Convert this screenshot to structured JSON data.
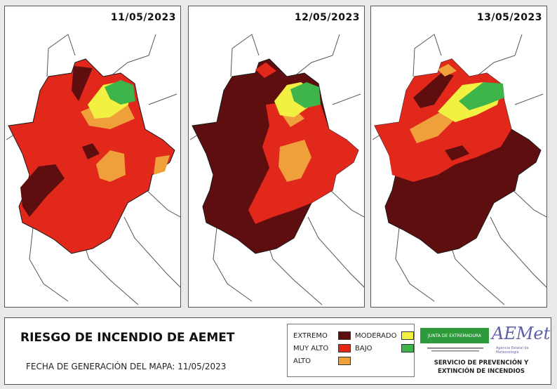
{
  "maps": [
    {
      "date": "11/05/2023"
    },
    {
      "date": "12/05/2023"
    },
    {
      "date": "13/05/2023"
    }
  ],
  "colors": {
    "extremo": "#5e0e0e",
    "muy_alto": "#e2271b",
    "alto": "#f0a03a",
    "moderado": "#f2f040",
    "bajo": "#3db54a",
    "border": "#1a1a1a"
  },
  "footer": {
    "title": "RIESGO DE INCENDIO DE AEMET",
    "generation_date": "FECHA DE GENERACIÓN DEL MAPA: 11/05/2023",
    "legend": {
      "extremo": "EXTREMO",
      "muy_alto": "MUY ALTO",
      "alto": "ALTO",
      "moderado": "MODERADO",
      "bajo": "BAJO"
    },
    "junta_logo": "JUNTA DE EXTREMADURA",
    "aemet_logo": "AEMet",
    "aemet_sub": "Agencia Estatal de Meteorología",
    "service_line1": "SERVICIO DE PREVENCIÓN Y",
    "service_line2": "EXTINCIÓN DE INCENDIOS"
  }
}
